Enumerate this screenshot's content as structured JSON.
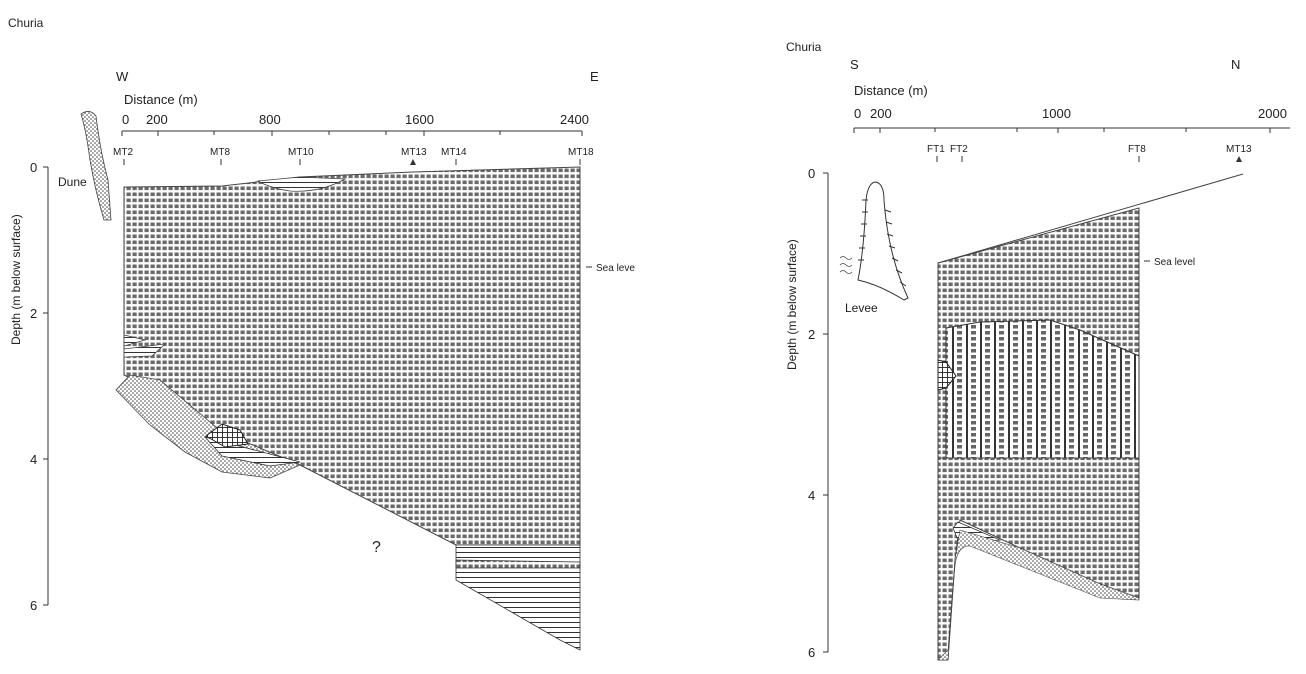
{
  "colors": {
    "line": "#333333",
    "grid_fill": "#ffffff",
    "grid_ink": "#555555"
  },
  "left_panel": {
    "site": "Churia",
    "dir_west": "W",
    "dir_east": "E",
    "distance_label": "Distance (m)",
    "distance_ticks": [
      "0",
      "200",
      "800",
      "1600",
      "2400"
    ],
    "depth_label": "Depth (m below surface)",
    "depth_ticks": [
      "0",
      "2",
      "4",
      "6"
    ],
    "wells": [
      "MT2",
      "MT8",
      "MT10",
      "MT13",
      "MT14",
      "MT18"
    ],
    "dune_label": "Dune",
    "sea_level_label": "Sea leve",
    "unknown_label": "?"
  },
  "right_panel": {
    "site": "Churia",
    "dir_south": "S",
    "dir_north": "N",
    "distance_label": "Distance (m)",
    "distance_ticks": [
      "0",
      "200",
      "1000",
      "2000"
    ],
    "depth_label": "Depth (m below surface)",
    "depth_ticks": [
      "0",
      "2",
      "4",
      "6"
    ],
    "wells": [
      "FT1",
      "FT2",
      "FT8",
      "MT13"
    ],
    "levee_label": "Levee",
    "sea_level_label": "Sea level"
  }
}
